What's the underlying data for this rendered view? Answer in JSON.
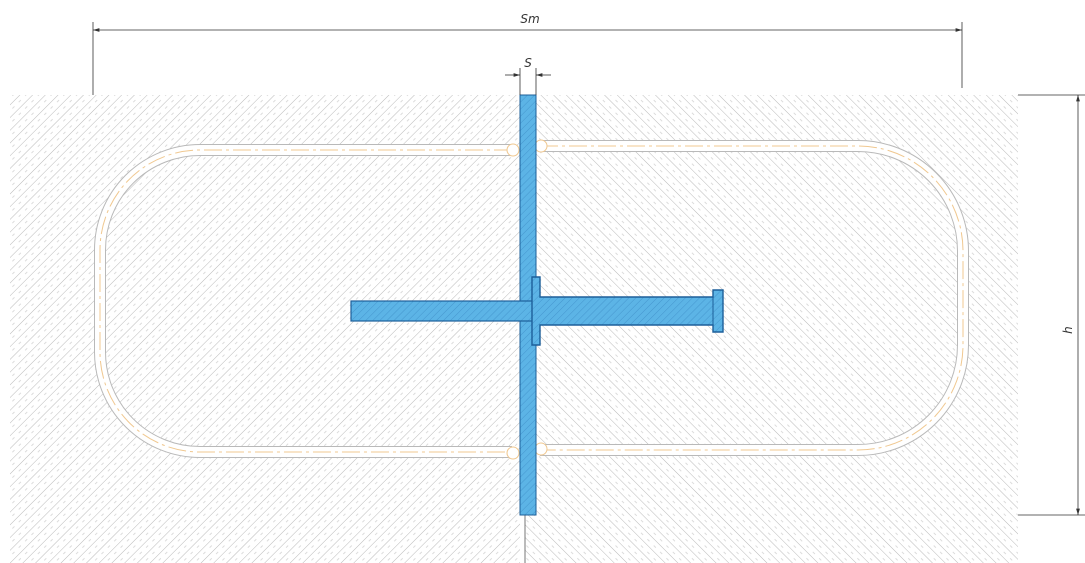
{
  "dimensions": {
    "sm_label": "Sm",
    "s_label": "S",
    "h_label": "h"
  },
  "colors": {
    "background": "#ffffff",
    "hatch": "#9a9a9a",
    "steel_fill": "#5cb4e6",
    "steel_stroke": "#1d5f9a",
    "coil": "#f0c890",
    "dimension": "#333333"
  }
}
